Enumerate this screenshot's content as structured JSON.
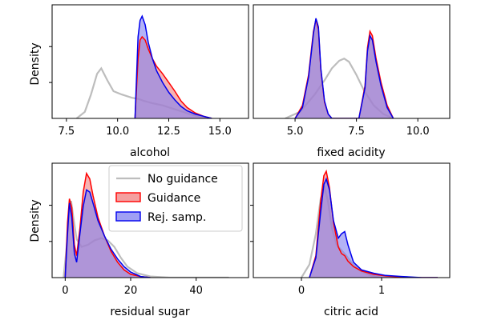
{
  "colors": {
    "no_guidance": "#bdbdbd",
    "guidance_line": "#ff0000",
    "guidance_fill": "#f08080",
    "rej_line": "#0000ee",
    "rej_fill": "#8080f0",
    "overlap_fill": "#9c4fb0"
  },
  "chart_data": [
    {
      "type": "area",
      "id": "alcohol",
      "xlabel": "alcohol",
      "ylabel": "Density",
      "xlim": [
        6.8,
        16.4
      ],
      "ylim": [
        0,
        1.0
      ],
      "xticks": [
        7.5,
        10.0,
        12.5,
        15.0
      ],
      "xtick_labels": [
        "7.5",
        "10.0",
        "12.5",
        "15.0"
      ],
      "yticks": [
        0.33,
        0.66
      ],
      "series": [
        {
          "name": "No guidance",
          "style": "line",
          "x": [
            8.0,
            8.4,
            8.7,
            9.0,
            9.2,
            9.5,
            9.8,
            10.2,
            10.7,
            11.0,
            11.3,
            11.7,
            12.2,
            12.7,
            13.2,
            13.7,
            14.2,
            14.6
          ],
          "y": [
            0.0,
            0.06,
            0.22,
            0.41,
            0.46,
            0.35,
            0.25,
            0.22,
            0.19,
            0.18,
            0.16,
            0.14,
            0.12,
            0.09,
            0.06,
            0.03,
            0.01,
            0.0
          ]
        },
        {
          "name": "Guidance",
          "style": "fill",
          "x": [
            10.85,
            11.0,
            11.1,
            11.2,
            11.35,
            11.5,
            11.7,
            11.9,
            12.2,
            12.5,
            12.8,
            13.1,
            13.4,
            13.8,
            14.2,
            14.6
          ],
          "y": [
            0.0,
            0.55,
            0.72,
            0.75,
            0.72,
            0.64,
            0.55,
            0.48,
            0.41,
            0.33,
            0.25,
            0.16,
            0.1,
            0.05,
            0.02,
            0.0
          ]
        },
        {
          "name": "Rej. samp.",
          "style": "fill",
          "x": [
            10.85,
            11.0,
            11.1,
            11.2,
            11.35,
            11.5,
            11.7,
            11.9,
            12.2,
            12.5,
            12.8,
            13.1,
            13.4,
            13.8,
            14.2,
            14.6
          ],
          "y": [
            0.0,
            0.75,
            0.9,
            0.94,
            0.86,
            0.7,
            0.55,
            0.44,
            0.33,
            0.24,
            0.17,
            0.11,
            0.07,
            0.04,
            0.02,
            0.0
          ]
        }
      ]
    },
    {
      "type": "area",
      "id": "fixed_acidity",
      "xlabel": "fixed acidity",
      "ylabel": "",
      "xlim": [
        3.3,
        11.3
      ],
      "ylim": [
        0,
        1.0
      ],
      "xticks": [
        5.0,
        7.5,
        10.0
      ],
      "xtick_labels": [
        "5.0",
        "7.5",
        "10.0"
      ],
      "yticks": [],
      "series": [
        {
          "name": "No guidance",
          "style": "line",
          "x": [
            4.6,
            5.2,
            5.8,
            6.2,
            6.5,
            6.8,
            7.0,
            7.2,
            7.5,
            7.8,
            8.2,
            8.6,
            9.0
          ],
          "y": [
            0.0,
            0.06,
            0.22,
            0.35,
            0.46,
            0.53,
            0.55,
            0.52,
            0.4,
            0.26,
            0.12,
            0.04,
            0.0
          ]
        },
        {
          "name": "Guidance",
          "style": "fill",
          "x": [
            5.0,
            5.3,
            5.55,
            5.75,
            5.85,
            5.95,
            6.05,
            6.2,
            6.35,
            6.5,
            7.6,
            7.85,
            7.95,
            8.05,
            8.15,
            8.3,
            8.5,
            8.75,
            9.0
          ],
          "y": [
            0.0,
            0.12,
            0.4,
            0.8,
            0.91,
            0.82,
            0.45,
            0.15,
            0.04,
            0.0,
            0.0,
            0.3,
            0.65,
            0.8,
            0.76,
            0.55,
            0.33,
            0.12,
            0.0
          ]
        },
        {
          "name": "Rej. samp.",
          "style": "fill",
          "x": [
            5.0,
            5.3,
            5.55,
            5.75,
            5.85,
            5.95,
            6.05,
            6.2,
            6.35,
            6.5,
            7.6,
            7.85,
            7.95,
            8.05,
            8.15,
            8.3,
            8.5,
            8.75,
            9.0
          ],
          "y": [
            0.0,
            0.1,
            0.38,
            0.78,
            0.92,
            0.84,
            0.46,
            0.16,
            0.04,
            0.0,
            0.0,
            0.28,
            0.62,
            0.76,
            0.72,
            0.52,
            0.3,
            0.1,
            0.0
          ]
        }
      ]
    },
    {
      "type": "area",
      "id": "residual_sugar",
      "xlabel": "residual sugar",
      "ylabel": "Density",
      "xlim": [
        -4,
        56
      ],
      "ylim": [
        0,
        1.0
      ],
      "xticks": [
        0,
        20,
        40
      ],
      "xtick_labels": [
        "0",
        "20",
        "40"
      ],
      "yticks": [
        0.33,
        0.66
      ],
      "series": [
        {
          "name": "No guidance",
          "style": "line",
          "x": [
            -0.5,
            0.5,
            1.2,
            1.8,
            2.5,
            3.5,
            5.0,
            7.0,
            9.0,
            11.0,
            13.0,
            15.0,
            17.0,
            19.0,
            22.0,
            26.0,
            32.0,
            40.0,
            50.0
          ],
          "y": [
            0.0,
            0.3,
            0.62,
            0.7,
            0.55,
            0.35,
            0.28,
            0.3,
            0.34,
            0.36,
            0.34,
            0.28,
            0.18,
            0.1,
            0.04,
            0.01,
            0.0,
            0.0,
            0.0
          ]
        },
        {
          "name": "Guidance",
          "style": "fill",
          "x": [
            0.0,
            0.7,
            1.3,
            2.0,
            2.8,
            3.5,
            4.5,
            5.5,
            6.5,
            7.5,
            8.5,
            10.0,
            12.0,
            14.0,
            16.0,
            18.0,
            20.0,
            23.0,
            26.0
          ],
          "y": [
            0.0,
            0.5,
            0.72,
            0.64,
            0.3,
            0.2,
            0.45,
            0.78,
            0.95,
            0.9,
            0.75,
            0.55,
            0.38,
            0.24,
            0.14,
            0.07,
            0.03,
            0.01,
            0.0
          ]
        },
        {
          "name": "Rej. samp.",
          "style": "fill",
          "x": [
            0.0,
            0.7,
            1.3,
            2.0,
            2.8,
            3.5,
            4.5,
            5.5,
            6.5,
            7.5,
            8.5,
            10.0,
            12.0,
            14.0,
            16.0,
            18.0,
            20.0,
            23.0,
            26.0
          ],
          "y": [
            0.0,
            0.4,
            0.68,
            0.55,
            0.22,
            0.14,
            0.4,
            0.65,
            0.8,
            0.78,
            0.68,
            0.52,
            0.38,
            0.26,
            0.17,
            0.1,
            0.05,
            0.01,
            0.0
          ]
        }
      ]
    },
    {
      "type": "area",
      "id": "citric_acid",
      "xlabel": "citric acid",
      "ylabel": "",
      "xlim": [
        -0.6,
        1.85
      ],
      "ylim": [
        0,
        1.0
      ],
      "xticks": [
        0,
        1
      ],
      "xtick_labels": [
        "0",
        "1"
      ],
      "yticks": [
        0.33,
        0.66
      ],
      "series": [
        {
          "name": "No guidance",
          "style": "line",
          "x": [
            0.0,
            0.1,
            0.18,
            0.24,
            0.29,
            0.33,
            0.38,
            0.44,
            0.5,
            0.56,
            0.64,
            0.74,
            0.86,
            1.0
          ],
          "y": [
            0.0,
            0.12,
            0.4,
            0.72,
            0.82,
            0.7,
            0.45,
            0.3,
            0.25,
            0.2,
            0.12,
            0.06,
            0.02,
            0.0
          ]
        },
        {
          "name": "Guidance",
          "style": "fill",
          "x": [
            0.1,
            0.18,
            0.24,
            0.28,
            0.31,
            0.35,
            0.4,
            0.46,
            0.5,
            0.54,
            0.58,
            0.65,
            0.75,
            0.9,
            1.05,
            1.25,
            1.5,
            1.7
          ],
          "y": [
            0.0,
            0.2,
            0.7,
            0.93,
            0.97,
            0.82,
            0.5,
            0.28,
            0.22,
            0.2,
            0.15,
            0.1,
            0.06,
            0.03,
            0.015,
            0.005,
            0.0,
            0.0
          ]
        },
        {
          "name": "Rej. samp.",
          "style": "fill",
          "x": [
            0.1,
            0.18,
            0.24,
            0.28,
            0.31,
            0.35,
            0.4,
            0.46,
            0.5,
            0.54,
            0.58,
            0.65,
            0.75,
            0.9,
            1.05,
            1.25,
            1.5,
            1.7
          ],
          "y": [
            0.0,
            0.18,
            0.6,
            0.85,
            0.9,
            0.8,
            0.52,
            0.36,
            0.4,
            0.42,
            0.3,
            0.14,
            0.07,
            0.04,
            0.02,
            0.01,
            0.0,
            0.0
          ]
        }
      ]
    }
  ],
  "legend": {
    "location": "upper-right of residual sugar panel",
    "entries": [
      {
        "label": "No guidance",
        "kind": "line"
      },
      {
        "label": "Guidance",
        "kind": "patch"
      },
      {
        "label": "Rej. samp.",
        "kind": "patch"
      }
    ]
  }
}
